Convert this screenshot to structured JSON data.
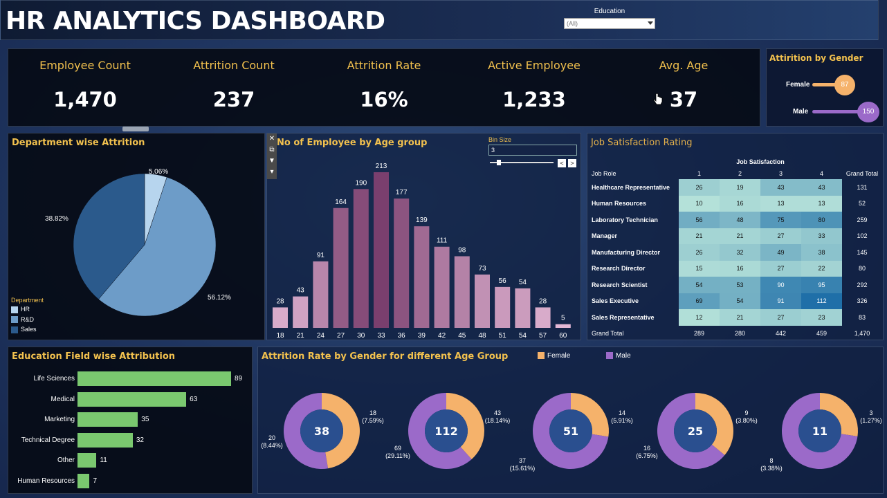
{
  "header": {
    "title": "HR ANALYTICS DASHBOARD",
    "education_filter": {
      "label": "Education",
      "value": "(All)"
    }
  },
  "kpis": [
    {
      "label": "Employee Count",
      "value": "1,470"
    },
    {
      "label": "Attrition Count",
      "value": "237"
    },
    {
      "label": "Attrition Rate",
      "value": "16%"
    },
    {
      "label": "Active Employee",
      "value": "1,233"
    },
    {
      "label": "Avg. Age",
      "value": "37"
    }
  ],
  "gender_panel": {
    "title": "Attirition by Gender",
    "female_label": "Female",
    "female_value": "87",
    "male_label": "Male",
    "male_value": "150",
    "colors": {
      "female": "#f5b26b",
      "male": "#9b6ac9"
    }
  },
  "department_panel": {
    "title": "Department wise Attrition",
    "legend_title": "Department",
    "legend": [
      "HR",
      "R&D",
      "Sales"
    ],
    "colors": [
      "#b7d5ee",
      "#6d9cc8",
      "#2b5a8c"
    ]
  },
  "age_panel": {
    "title": "No of Employee by Age group",
    "bin_size_label": "Bin Size",
    "bin_size_value": "3"
  },
  "job_panel": {
    "title": "Job Satisfaction Rating",
    "header_group": "Job Satisfaction",
    "row_header": "Job Role",
    "columns": [
      "1",
      "2",
      "3",
      "4",
      "Grand Total"
    ],
    "rows": [
      {
        "role": "Healthcare Representative",
        "vals": [
          "26",
          "19",
          "43",
          "43"
        ],
        "total": "131"
      },
      {
        "role": "Human Resources",
        "vals": [
          "10",
          "16",
          "13",
          "13"
        ],
        "total": "52"
      },
      {
        "role": "Laboratory Technician",
        "vals": [
          "56",
          "48",
          "75",
          "80"
        ],
        "total": "259"
      },
      {
        "role": "Manager",
        "vals": [
          "21",
          "21",
          "27",
          "33"
        ],
        "total": "102"
      },
      {
        "role": "Manufacturing Director",
        "vals": [
          "26",
          "32",
          "49",
          "38"
        ],
        "total": "145"
      },
      {
        "role": "Research Director",
        "vals": [
          "15",
          "16",
          "27",
          "22"
        ],
        "total": "80"
      },
      {
        "role": "Research Scientist",
        "vals": [
          "54",
          "53",
          "90",
          "95"
        ],
        "total": "292"
      },
      {
        "role": "Sales Executive",
        "vals": [
          "69",
          "54",
          "91",
          "112"
        ],
        "total": "326"
      },
      {
        "role": "Sales Representative",
        "vals": [
          "12",
          "21",
          "27",
          "23"
        ],
        "total": "83"
      }
    ],
    "grand_total": {
      "label": "Grand Total",
      "vals": [
        "289",
        "280",
        "442",
        "459"
      ],
      "total": "1,470"
    }
  },
  "edu_panel": {
    "title": "Education Field wise Attribution",
    "bar_color": "#7ac86f"
  },
  "agegroup_panel": {
    "title": "Attrition Rate by Gender for different Age Group",
    "legend": [
      {
        "label": "Female",
        "color": "#f5b26b"
      },
      {
        "label": "Male",
        "color": "#9b6ac9"
      }
    ]
  },
  "chart_data": [
    {
      "type": "pie",
      "title": "Department wise Attrition",
      "categories": [
        "HR",
        "R&D",
        "Sales"
      ],
      "values": [
        5.06,
        56.12,
        38.82
      ],
      "labels": [
        "5.06%",
        "56.12%",
        "38.82%"
      ]
    },
    {
      "type": "bar",
      "title": "No of Employee by Age group",
      "categories": [
        "18",
        "21",
        "24",
        "27",
        "30",
        "33",
        "36",
        "39",
        "42",
        "45",
        "48",
        "51",
        "54",
        "57",
        "60"
      ],
      "values": [
        28,
        43,
        91,
        164,
        190,
        213,
        177,
        139,
        111,
        98,
        73,
        56,
        54,
        28,
        5
      ],
      "ylim": [
        0,
        225
      ]
    },
    {
      "type": "bar",
      "title": "Education Field wise Attribution",
      "categories": [
        "Life Sciences",
        "Medical",
        "Marketing",
        "Technical Degree",
        "Other",
        "Human Resources"
      ],
      "values": [
        89,
        63,
        35,
        32,
        11,
        7
      ]
    },
    {
      "type": "pie",
      "title": "Attrition Rate by Gender for different Age Group",
      "groups": [
        {
          "total": "38",
          "female": 18,
          "female_pct": "(7.59%)",
          "male": 20,
          "male_pct": "(8.44%)"
        },
        {
          "total": "112",
          "female": 43,
          "female_pct": "(18.14%)",
          "male": 69,
          "male_pct": "(29.11%)"
        },
        {
          "total": "51",
          "female": 14,
          "female_pct": "(5.91%)",
          "male": 37,
          "male_pct": "(15.61%)"
        },
        {
          "total": "25",
          "female": 9,
          "female_pct": "(3.80%)",
          "male": 16,
          "male_pct": "(6.75%)"
        },
        {
          "total": "11",
          "female": 3,
          "female_pct": "(1.27%)",
          "male": 8,
          "male_pct": "(3.38%)"
        }
      ]
    }
  ]
}
